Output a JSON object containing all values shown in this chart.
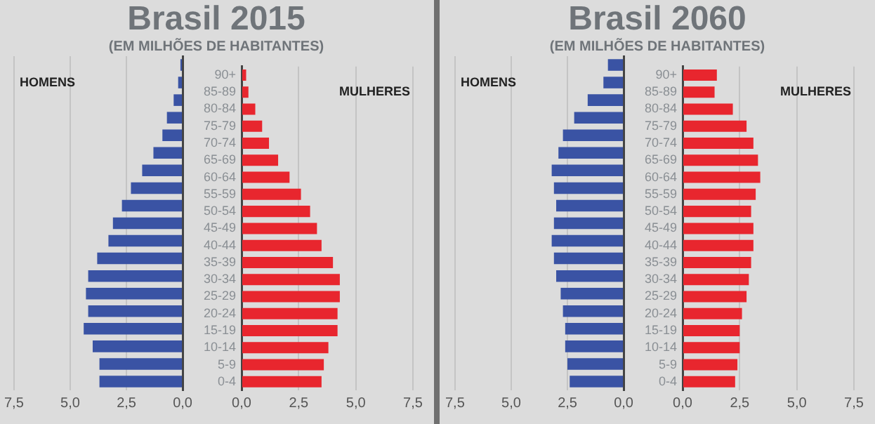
{
  "chart_data": [
    {
      "type": "bar",
      "orientation": "horizontal",
      "title": "Brasil 2015",
      "subtitle": "(EM MILHÕES DE HABITANTES)",
      "tick_labels": "x",
      "grid": "x",
      "categories": [
        null,
        null,
        null,
        null,
        null,
        null,
        null,
        null,
        null,
        null,
        null,
        null,
        null,
        null,
        null,
        null,
        null,
        null,
        null
      ],
      "series": [
        {
          "name": "HOMENS",
          "color": "#3a53a4",
          "values": [
            0.1,
            0.2,
            0.4,
            0.7,
            0.9,
            1.3,
            1.8,
            2.3,
            2.7,
            3.1,
            3.3,
            3.8,
            4.2,
            4.3,
            4.2,
            4.4,
            4.0,
            3.7,
            3.7
          ]
        }
      ],
      "xlim": [
        7.5,
        0
      ],
      "xticks": [
        {
          "value": 7.5,
          "label": "7,5"
        },
        {
          "value": 5,
          "label": "5,0"
        },
        {
          "value": 2.5,
          "label": "2,5"
        },
        {
          "value": 0,
          "label": "0,0"
        }
      ]
    },
    {
      "type": "bar",
      "orientation": "horizontal",
      "grid": "x",
      "categories": [
        "90+",
        "85-89",
        "80-84",
        "75-79",
        "70-74",
        "65-69",
        "60-64",
        "55-59",
        "50-54",
        "45-49",
        "40-44",
        "35-39",
        "30-34",
        "25-29",
        "20-24",
        "15-19",
        "10-14",
        "5-9",
        "0-4"
      ],
      "series": [
        {
          "name": "MULHERES",
          "color": "#e8262e",
          "values": [
            0.2,
            0.3,
            0.6,
            0.9,
            1.2,
            1.6,
            2.1,
            2.6,
            3.0,
            3.3,
            3.5,
            4.0,
            4.3,
            4.3,
            4.2,
            4.2,
            3.8,
            3.6,
            3.5
          ]
        }
      ],
      "xlim": [
        0,
        7.5
      ],
      "xticks": [
        {
          "value": 0,
          "label": "0,0"
        },
        {
          "value": 2.5,
          "label": "2,5"
        },
        {
          "value": 5,
          "label": "5,0"
        },
        {
          "value": 7.5,
          "label": "7,5"
        }
      ]
    },
    {
      "type": "bar",
      "orientation": "horizontal",
      "title": "Brasil 2060",
      "subtitle": "(EM MILHÕES DE HABITANTES)",
      "tick_labels": "x",
      "grid": "x",
      "categories": [
        null,
        null,
        null,
        null,
        null,
        null,
        null,
        null,
        null,
        null,
        null,
        null,
        null,
        null,
        null,
        null,
        null,
        null,
        null
      ],
      "series": [
        {
          "name": "HOMENS",
          "color": "#3a53a4",
          "values": [
            0.7,
            0.9,
            1.6,
            2.2,
            2.7,
            2.9,
            3.2,
            3.1,
            3.0,
            3.1,
            3.2,
            3.1,
            3.0,
            2.8,
            2.7,
            2.6,
            2.6,
            2.5,
            2.4
          ]
        }
      ],
      "xlim": [
        7.5,
        0
      ],
      "xticks": [
        {
          "value": 7.5,
          "label": "7,5"
        },
        {
          "value": 5,
          "label": "5,0"
        },
        {
          "value": 2.5,
          "label": "2,5"
        },
        {
          "value": 0,
          "label": "0,0"
        }
      ]
    },
    {
      "type": "bar",
      "orientation": "horizontal",
      "grid": "x",
      "categories": [
        "90+",
        "85-89",
        "80-84",
        "75-79",
        "70-74",
        "65-69",
        "60-64",
        "55-59",
        "50-54",
        "45-49",
        "40-44",
        "35-39",
        "30-34",
        "25-29",
        "20-24",
        "15-19",
        "10-14",
        "5-9",
        "0-4"
      ],
      "series": [
        {
          "name": "MULHERES",
          "color": "#e8262e",
          "values": [
            1.5,
            1.4,
            2.2,
            2.8,
            3.1,
            3.3,
            3.4,
            3.2,
            3.0,
            3.1,
            3.1,
            3.0,
            2.9,
            2.8,
            2.6,
            2.5,
            2.5,
            2.4,
            2.3
          ]
        }
      ],
      "xlim": [
        0,
        7.5
      ],
      "xticks": [
        {
          "value": 0,
          "label": "0,0"
        },
        {
          "value": 2.5,
          "label": "2,5"
        },
        {
          "value": 5,
          "label": "5,0"
        },
        {
          "value": 7.5,
          "label": "7,5"
        }
      ]
    }
  ]
}
